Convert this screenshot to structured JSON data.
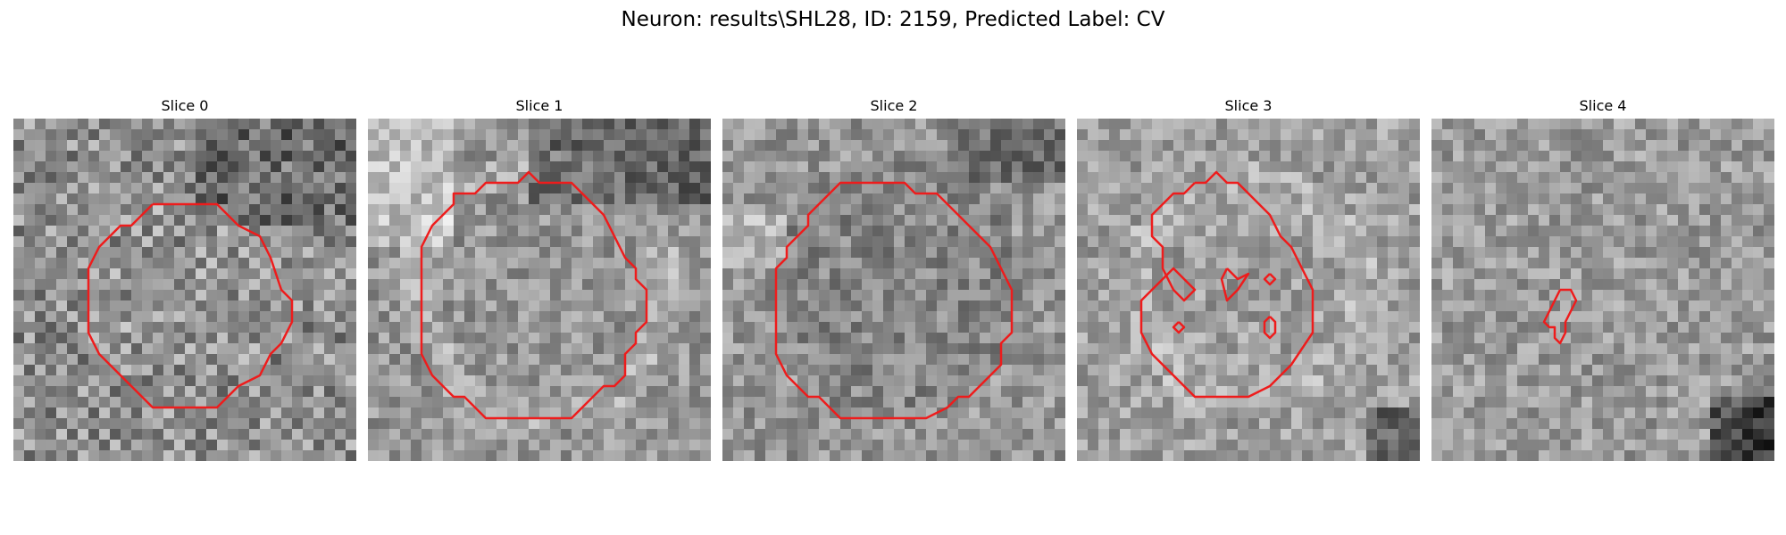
{
  "title": "Neuron: results\\SHL28, ID: 2159, Predicted Label: CV",
  "colors": {
    "contour": "#ee1c1c",
    "background": "#ffffff"
  },
  "slices": [
    {
      "label": "Slice 0"
    },
    {
      "label": "Slice 1"
    },
    {
      "label": "Slice 2"
    },
    {
      "label": "Slice 3"
    },
    {
      "label": "Slice 4"
    }
  ]
}
